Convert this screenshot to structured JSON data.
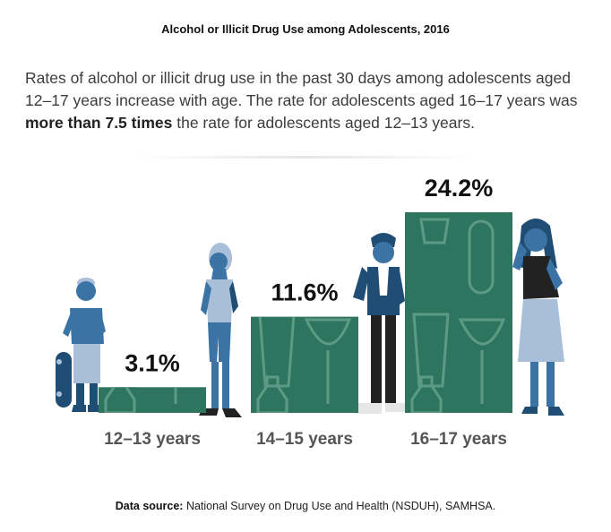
{
  "title": "Alcohol or Illicit Drug Use among Adolescents, 2016",
  "description": {
    "before": "Rates of alcohol or illicit drug use in the past 30 days among adolescents aged 12–17 years increase with age. The rate for adolescents aged 16–17 years was ",
    "bold": "more than 7.5 times",
    "after": " the rate for adolescents aged 12–13 years."
  },
  "source": {
    "label": "Data source:",
    "text": " National Survey on Drug Use and Health (NSDUH), SAMHSA."
  },
  "colors": {
    "bar": "#2e7560",
    "bar_icon": "#5d9a86",
    "figure_dark": "#1f4d73",
    "figure_mid": "#3b74a4",
    "figure_light": "#a9bfd9"
  },
  "chart_data": {
    "type": "bar",
    "categories": [
      "12–13 years",
      "14–15 years",
      "16–17 years"
    ],
    "values": [
      3.1,
      11.6,
      24.2
    ],
    "value_labels": [
      "3.1%",
      "11.6%",
      "24.2%"
    ],
    "title": "Alcohol or Illicit Drug Use among Adolescents, 2016",
    "xlabel": "",
    "ylabel": "",
    "ylim": [
      0,
      24.2
    ],
    "grid": false,
    "legend": "none"
  }
}
